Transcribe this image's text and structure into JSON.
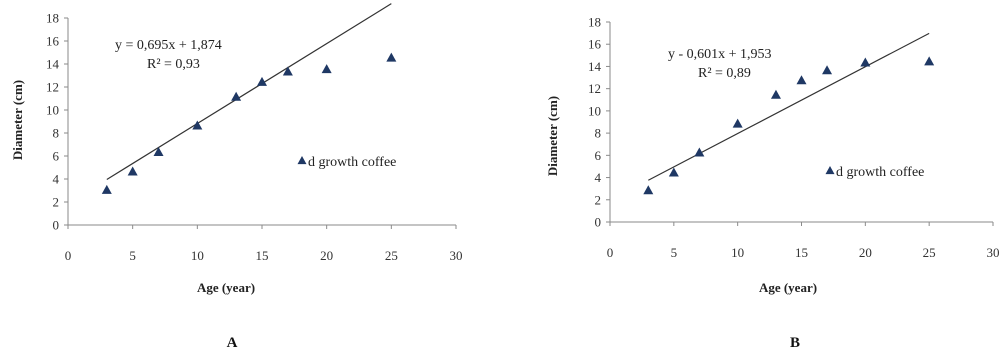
{
  "chart_data": [
    {
      "type": "scatter",
      "panel_label": "A",
      "xlabel": "Age (year)",
      "ylabel": "Diameter (cm)",
      "xlim": [
        0,
        30
      ],
      "ylim": [
        0,
        18
      ],
      "xticks": [
        0,
        5,
        10,
        15,
        20,
        25,
        30
      ],
      "yticks": [
        0,
        2,
        4,
        6,
        8,
        10,
        12,
        14,
        16,
        18
      ],
      "grid": false,
      "series": [
        {
          "name": "d growth coffee",
          "marker": "triangle",
          "color": "#1f3864",
          "x": [
            3,
            5,
            7,
            10,
            13,
            15,
            17,
            20,
            25
          ],
          "y": [
            3.0,
            4.6,
            6.3,
            8.6,
            11.1,
            12.4,
            13.3,
            13.5,
            14.5
          ]
        }
      ],
      "trendline": {
        "slope": 0.695,
        "intercept": 1.874,
        "x_range": [
          3,
          25
        ],
        "color": "#333333"
      },
      "equation": "y = 0,695x + 1,874",
      "r_squared": "R² = 0,93",
      "legend": {
        "label": "d growth coffee",
        "placement": "right"
      }
    },
    {
      "type": "scatter",
      "panel_label": "B",
      "xlabel": "Age (year)",
      "ylabel": "Diameter (cm)",
      "xlim": [
        0,
        30
      ],
      "ylim": [
        0,
        18
      ],
      "xticks": [
        0,
        5,
        10,
        15,
        20,
        25,
        30
      ],
      "yticks": [
        0,
        2,
        4,
        6,
        8,
        10,
        12,
        14,
        16,
        18
      ],
      "grid": false,
      "series": [
        {
          "name": "d growth coffee",
          "marker": "triangle",
          "color": "#1f3864",
          "x": [
            3,
            5,
            7,
            10,
            13,
            15,
            17,
            20,
            25
          ],
          "y": [
            2.8,
            4.4,
            6.2,
            8.8,
            11.4,
            12.7,
            13.6,
            14.3,
            14.4
          ]
        }
      ],
      "trendline": {
        "slope": 0.601,
        "intercept": 1.953,
        "x_range": [
          3,
          25
        ],
        "color": "#333333"
      },
      "equation": "y - 0,601x + 1,953",
      "r_squared": "R² = 0,89",
      "legend": {
        "label": "d growth coffee",
        "placement": "right"
      }
    }
  ]
}
